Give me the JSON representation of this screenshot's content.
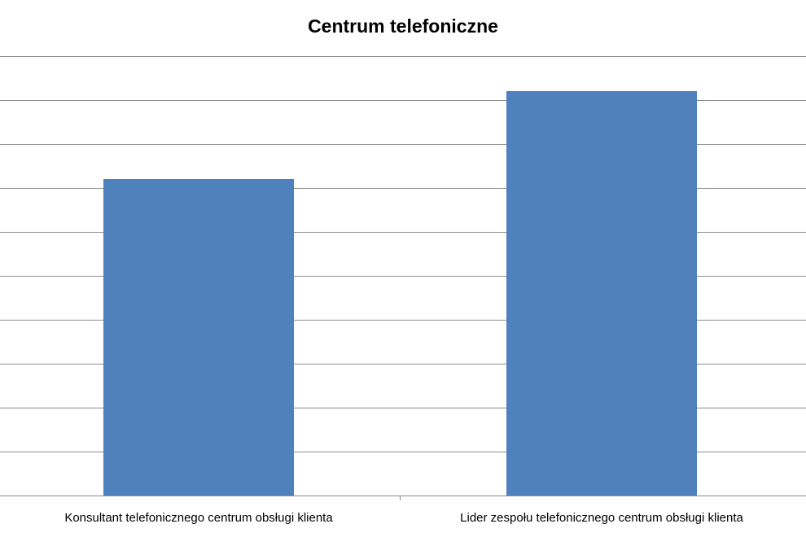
{
  "chart_data": {
    "type": "bar",
    "title": "Centrum telefoniczne",
    "categories": [
      "Konsultant telefonicznego centrum obsługi klienta",
      "Lider zespołu telefonicznego centrum obsługi klienta"
    ],
    "values": [
      7.2,
      9.2
    ],
    "ylim": [
      0,
      10
    ],
    "ytick_step": 1,
    "xlabel": "",
    "ylabel": "",
    "grid": true,
    "legend": "none",
    "bar_color": "#4f81bd",
    "grid_color": "#8c8c8c"
  }
}
